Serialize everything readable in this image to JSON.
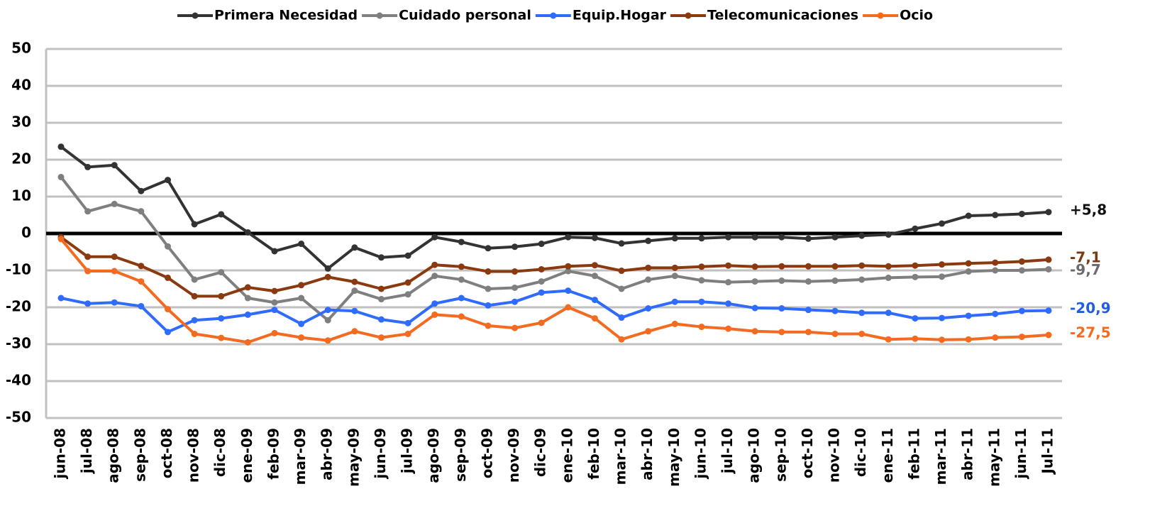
{
  "chart_data": {
    "type": "line",
    "categories": [
      "jun-08",
      "jul-08",
      "ago-08",
      "sep-08",
      "oct-08",
      "nov-08",
      "dic-08",
      "ene-09",
      "feb-09",
      "mar-09",
      "abr-09",
      "may-09",
      "jun-09",
      "jul-09",
      "ago-09",
      "sep-09",
      "oct-09",
      "nov-09",
      "dic-09",
      "ene-10",
      "feb-10",
      "mar-10",
      "abr-10",
      "may-10",
      "jun-10",
      "jul-10",
      "ago-10",
      "sep-10",
      "oct-10",
      "nov-10",
      "dic-10",
      "ene-11",
      "feb-11",
      "mar-11",
      "abr-11",
      "may-11",
      "jun-11",
      "Jul-11"
    ],
    "series": [
      {
        "name": "Primera Necesidad",
        "color": "#333333",
        "label_color": "#111111",
        "values": [
          23.5,
          18,
          18.5,
          11.5,
          14.5,
          2.5,
          5.2,
          0.3,
          -4.8,
          -2.8,
          -9.5,
          -3.8,
          -6.5,
          -6,
          -1,
          -2.3,
          -4,
          -3.6,
          -2.8,
          -1,
          -1.2,
          -2.7,
          -2,
          -1.3,
          -1.3,
          -1,
          -1,
          -1,
          -1.4,
          -1,
          -0.6,
          -0.3,
          1.3,
          2.7,
          4.8,
          5,
          5.3,
          5.8
        ],
        "value_labels": [
          null,
          null,
          null,
          null,
          null,
          null,
          null,
          null,
          null,
          null,
          null,
          null,
          null,
          null,
          null,
          null,
          null,
          null,
          null,
          null,
          null,
          null,
          null,
          null,
          null,
          null,
          null,
          null,
          null,
          null,
          null,
          null,
          null,
          null,
          null,
          null,
          null,
          "+5,8"
        ]
      },
      {
        "name": "Cuidado personal",
        "color": "#7f7f7f",
        "label_color": "#6b6b6b",
        "values": [
          15.3,
          6,
          8,
          6,
          -3.5,
          -12.5,
          -10.5,
          -17.5,
          -18.7,
          -17.5,
          -23.5,
          -15.5,
          -17.8,
          -16.5,
          -11.5,
          -12.5,
          -15,
          -14.7,
          -13,
          -10.2,
          -11.5,
          -15,
          -12.5,
          -11.5,
          -12.7,
          -13.2,
          -13,
          -12.8,
          -13,
          -12.8,
          -12.5,
          -12,
          -11.8,
          -11.7,
          -10.3,
          -10,
          -10,
          -9.7
        ],
        "value_labels": [
          null,
          null,
          null,
          null,
          null,
          null,
          null,
          null,
          null,
          null,
          null,
          null,
          null,
          null,
          null,
          null,
          null,
          null,
          null,
          null,
          null,
          null,
          null,
          null,
          null,
          null,
          null,
          null,
          null,
          null,
          null,
          null,
          null,
          null,
          null,
          null,
          null,
          "-9,7"
        ]
      },
      {
        "name": "Equip.Hogar",
        "color": "#2f6bff",
        "label_color": "#1f5ee0",
        "values": [
          -17.5,
          -19,
          -18.7,
          -19.7,
          -26.7,
          -23.5,
          -23,
          -22,
          -20.7,
          -24.5,
          -20.7,
          -21,
          -23.3,
          -24.3,
          -19,
          -17.5,
          -19.5,
          -18.5,
          -16,
          -15.5,
          -18,
          -22.8,
          -20.3,
          -18.5,
          -18.5,
          -19,
          -20.2,
          -20.3,
          -20.7,
          -21,
          -21.5,
          -21.5,
          -23,
          -22.9,
          -22.3,
          -21.8,
          -21,
          -20.9
        ],
        "value_labels": [
          null,
          null,
          null,
          null,
          null,
          null,
          null,
          null,
          null,
          null,
          null,
          null,
          null,
          null,
          null,
          null,
          null,
          null,
          null,
          null,
          null,
          null,
          null,
          null,
          null,
          null,
          null,
          null,
          null,
          null,
          null,
          null,
          null,
          null,
          null,
          null,
          null,
          "-20,9"
        ]
      },
      {
        "name": "Telecomunicaciones",
        "color": "#8b3a0f",
        "label_color": "#7a3a10",
        "values": [
          -1,
          -6.3,
          -6.3,
          -8.8,
          -12,
          -17,
          -17,
          -14.6,
          -15.6,
          -14,
          -11.8,
          -13.1,
          -15,
          -13.3,
          -8.5,
          -9,
          -10.3,
          -10.3,
          -9.7,
          -8.9,
          -8.6,
          -10.1,
          -9.3,
          -9.3,
          -9,
          -8.7,
          -9,
          -8.9,
          -8.9,
          -8.9,
          -8.7,
          -8.9,
          -8.7,
          -8.4,
          -8.1,
          -7.9,
          -7.6,
          -7.1
        ],
        "value_labels": [
          null,
          null,
          null,
          null,
          null,
          null,
          null,
          null,
          null,
          null,
          null,
          null,
          null,
          null,
          null,
          null,
          null,
          null,
          null,
          null,
          null,
          null,
          null,
          null,
          null,
          null,
          null,
          null,
          null,
          null,
          null,
          null,
          null,
          null,
          null,
          null,
          null,
          "-7,1"
        ]
      },
      {
        "name": "Ocio",
        "color": "#f26b21",
        "label_color": "#f26b21",
        "values": [
          -1.5,
          -10.2,
          -10.2,
          -13,
          -20.5,
          -27.2,
          -28.3,
          -29.5,
          -27,
          -28.2,
          -29,
          -26.5,
          -28.2,
          -27.2,
          -22,
          -22.5,
          -25,
          -25.6,
          -24.2,
          -20,
          -23,
          -28.7,
          -26.5,
          -24.5,
          -25.3,
          -25.8,
          -26.5,
          -26.7,
          -26.7,
          -27.2,
          -27.2,
          -28.7,
          -28.5,
          -28.8,
          -28.7,
          -28.2,
          -28,
          -27.5
        ],
        "value_labels": [
          null,
          null,
          null,
          null,
          null,
          null,
          null,
          null,
          null,
          null,
          null,
          null,
          null,
          null,
          null,
          null,
          null,
          null,
          null,
          null,
          null,
          null,
          null,
          null,
          null,
          null,
          null,
          null,
          null,
          null,
          null,
          null,
          null,
          null,
          null,
          null,
          null,
          "-27,5"
        ]
      }
    ],
    "ylim": [
      -50,
      50
    ],
    "yticks": [
      50,
      40,
      30,
      20,
      10,
      0,
      -10,
      -20,
      -30,
      -40,
      -50
    ],
    "grid": true,
    "legend": "top"
  }
}
